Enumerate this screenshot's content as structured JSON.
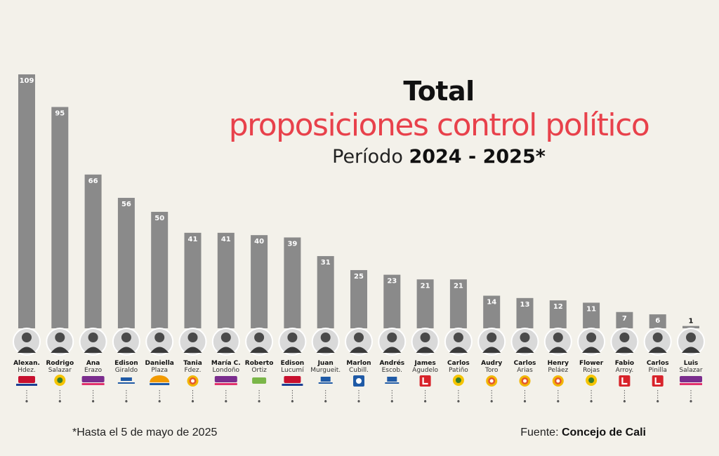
{
  "title": {
    "line1": "Total",
    "line2": "proposiciones control político",
    "period_label": "Período",
    "period_value": "2024 - 2025*"
  },
  "footnote": "*Hasta el 5 de mayo de 2025",
  "source": {
    "label": "Fuente:",
    "value": "Concejo de Cali"
  },
  "colors": {
    "bar": "#8a8a8a",
    "title_accent": "#e8414b",
    "background": "#f3f1ea"
  },
  "chart_data": {
    "type": "bar",
    "categories": [
      [
        "Alexan.",
        "Hdez."
      ],
      [
        "Rodrigo",
        "Salazar"
      ],
      [
        "Ana",
        "Erazo"
      ],
      [
        "Edison",
        "Giraldo"
      ],
      [
        "Daniella",
        "Plaza"
      ],
      [
        "Tania",
        "Fdez."
      ],
      [
        "María C.",
        "Londoño"
      ],
      [
        "Roberto",
        "Ortiz"
      ],
      [
        "Edison",
        "Lucumí"
      ],
      [
        "Juan",
        "Murgueit."
      ],
      [
        "Marlon",
        "Cubill."
      ],
      [
        "Andrés",
        "Escob."
      ],
      [
        "James",
        "Agudelo"
      ],
      [
        "Carlos",
        "Patiño"
      ],
      [
        "Audry",
        "Toro"
      ],
      [
        "Carlos",
        "Arias"
      ],
      [
        "Henry",
        "Peláez"
      ],
      [
        "Flower",
        "Rojas"
      ],
      [
        "Fabio",
        "Arroy."
      ],
      [
        "Carlos",
        "Pinilla"
      ],
      [
        "Luis",
        "Salazar"
      ]
    ],
    "values": [
      109,
      95,
      66,
      56,
      50,
      41,
      41,
      40,
      39,
      31,
      25,
      23,
      21,
      21,
      14,
      13,
      12,
      11,
      7,
      6,
      1
    ],
    "party_icons": [
      "cambio-radical-logo",
      "sunflower-logo",
      "pacto-historico-logo",
      "centro-democratico-logo",
      "renaciente-logo",
      "u-party-logo",
      "pacto-historico-logo",
      "green-party-logo",
      "cambio-radical-logo",
      "centro-logo",
      "conservative-logo",
      "centro-logo",
      "liberal-logo",
      "sunflower-logo",
      "u-party-logo",
      "u-party-logo",
      "u-party-logo",
      "sunflower-logo",
      "liberal-logo",
      "liberal-logo",
      "pacto-historico-logo"
    ],
    "ylim": [
      0,
      109
    ]
  }
}
